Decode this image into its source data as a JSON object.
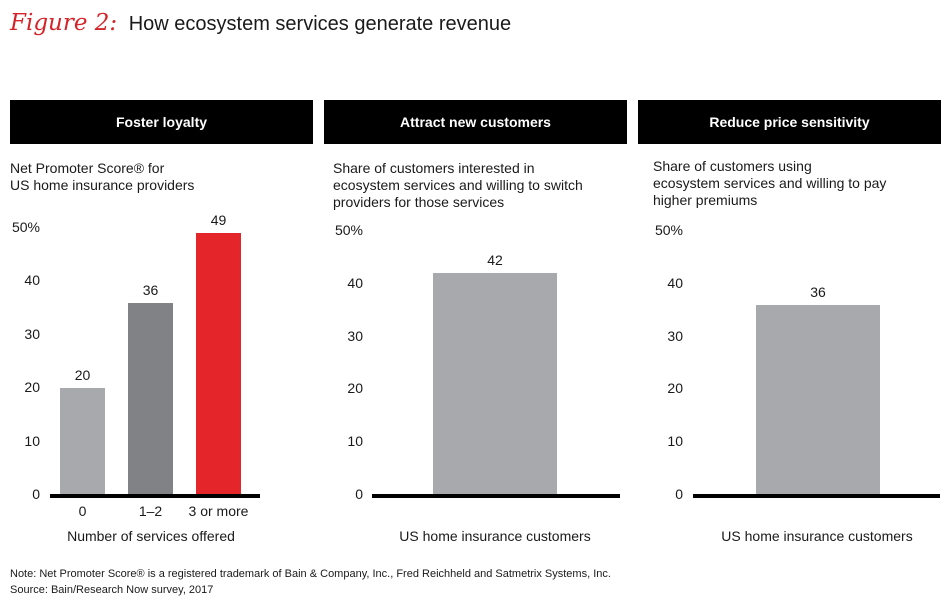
{
  "header": {
    "figure_label": "Figure 2:",
    "title": "How ecosystem services generate revenue"
  },
  "colors": {
    "accent": "#d4242a",
    "bar_light": "#a7a9ac",
    "bar_dark": "#808285",
    "bar_red": "#e4262b",
    "header_bg": "#000000"
  },
  "chart_data": [
    {
      "type": "bar",
      "title": "Foster loyalty",
      "subtitle": "Net Promoter Score® for\nUS home insurance providers",
      "categories": [
        "0",
        "1–2",
        "3 or more"
      ],
      "values": [
        20,
        36,
        49
      ],
      "bar_colors": [
        "#a7a9ac",
        "#808285",
        "#e4262b"
      ],
      "xlabel": "Number of services offered",
      "ylabel": "",
      "ylim": [
        0,
        50
      ],
      "yticks": [
        "0",
        "10",
        "20",
        "30",
        "40",
        "50%"
      ],
      "grid": false
    },
    {
      "type": "bar",
      "title": "Attract new customers",
      "subtitle": "Share of customers interested in\necosystem services and willing to switch\nproviders for those services",
      "categories": [
        ""
      ],
      "values": [
        42
      ],
      "bar_colors": [
        "#a7a9ac"
      ],
      "xlabel": "US home insurance customers",
      "ylabel": "",
      "ylim": [
        0,
        50
      ],
      "yticks": [
        "0",
        "10",
        "20",
        "30",
        "40",
        "50%"
      ],
      "grid": false
    },
    {
      "type": "bar",
      "title": "Reduce price sensitivity",
      "subtitle": "Share of customers using\necosystem services and willing to pay\nhigher premiums",
      "categories": [
        ""
      ],
      "values": [
        36
      ],
      "bar_colors": [
        "#a7a9ac"
      ],
      "xlabel": "US home insurance customers",
      "ylabel": "",
      "ylim": [
        0,
        50
      ],
      "yticks": [
        "0",
        "10",
        "20",
        "30",
        "40",
        "50%"
      ],
      "grid": false
    }
  ],
  "footer": {
    "note": "Note: Net Promoter Score® is a registered trademark of Bain & Company, Inc., Fred Reichheld and Satmetrix Systems, Inc.",
    "source": "Source: Bain/Research Now survey, 2017"
  }
}
